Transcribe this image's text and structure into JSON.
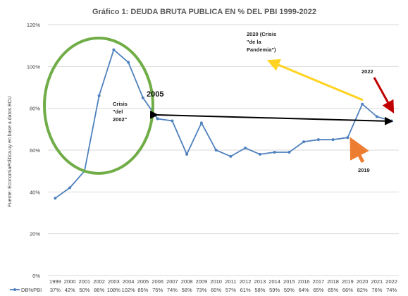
{
  "chart_data": {
    "type": "line",
    "title": "Gráfico 1: DEUDA BRUTA PUBLICA EN % DEL PBI 1999-2022",
    "ylabel": "Fuente: EconomiaPolitica.uy en base a datos BCU",
    "xlabel": "",
    "ylim": [
      0,
      120
    ],
    "y_ticks": [
      "0%",
      "20%",
      "40%",
      "60%",
      "80%",
      "100%",
      "120%"
    ],
    "categories": [
      "1999",
      "2000",
      "2001",
      "2002",
      "2003",
      "2004",
      "2005",
      "2006",
      "2007",
      "2008",
      "2009",
      "2010",
      "2011",
      "2012",
      "2013",
      "2014",
      "2015",
      "2016",
      "2017",
      "2018",
      "2019",
      "2020",
      "2021",
      "2022"
    ],
    "series": [
      {
        "name": "DB%PBI",
        "values": [
          37,
          42,
          50,
          86,
          108,
          102,
          85,
          75,
          74,
          58,
          73,
          60,
          57,
          61,
          58,
          59,
          59,
          64,
          65,
          65,
          66,
          82,
          76,
          74
        ],
        "labels": [
          "37%",
          "42%",
          "50%",
          "86%",
          "108%",
          "102%",
          "85%",
          "75%",
          "74%",
          "58%",
          "73%",
          "60%",
          "57%",
          "61%",
          "58%",
          "59%",
          "59%",
          "64%",
          "65%",
          "65%",
          "66%",
          "82%",
          "76%",
          "74%"
        ],
        "color": "#4f81bd"
      }
    ],
    "grid": true,
    "legend": "bottom-left",
    "annotations": {
      "crisis_2002": [
        "Crisis",
        "\"del",
        "2002\""
      ],
      "pandemia_2020": [
        "2020 (Crisis",
        "\"de la",
        "Pandemia\")"
      ],
      "label_2005": "2005",
      "label_2022": "2022",
      "label_2019": "2019"
    },
    "colors": {
      "ellipse": "#70ad47",
      "yellow_arrow": "#ffd320",
      "red_arrow": "#c00000",
      "orange_arrow": "#ed7d31",
      "black_arrow": "#000000",
      "grid": "#d9d9d9"
    }
  }
}
